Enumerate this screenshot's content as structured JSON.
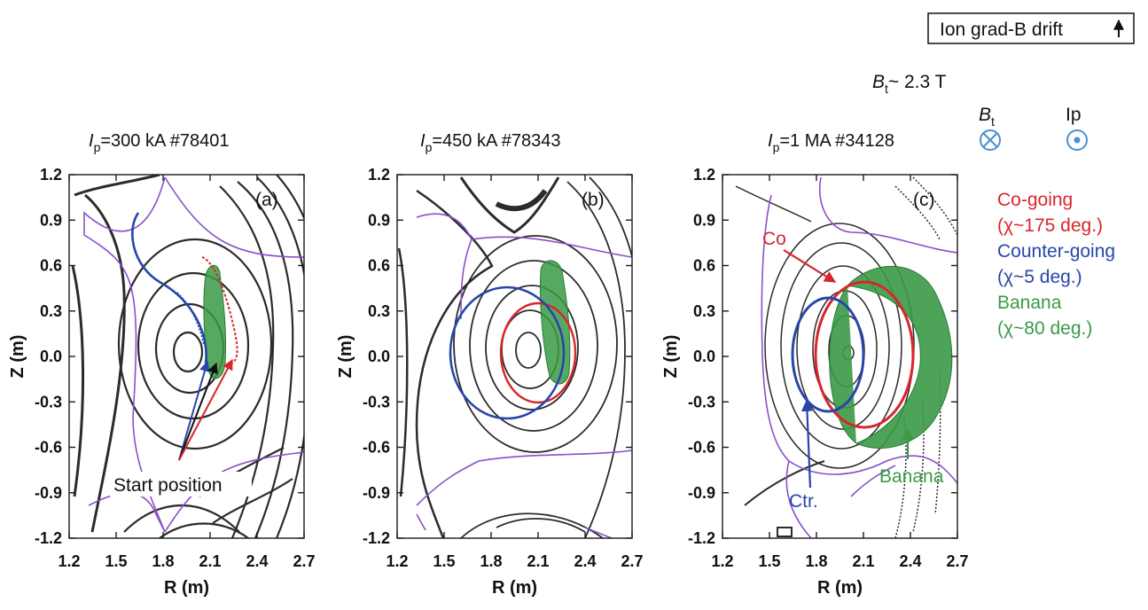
{
  "drift_box_label": "Ion grad-B drift",
  "bt_value": {
    "symbol": "B",
    "sub": "t",
    "value": "~ 2.3 T"
  },
  "field_symbols": {
    "bt": {
      "symbol": "B",
      "sub": "t",
      "glyph": "circle-cross-icon"
    },
    "ip": {
      "label": "Ip",
      "glyph": "circle-dot-icon"
    }
  },
  "legend": [
    {
      "line1": "Co-going",
      "line2": "(χ~175 deg.)",
      "color": "#d8262b"
    },
    {
      "line1": "Counter-going",
      "line2": "(χ~5 deg.)",
      "color": "#2746a8"
    },
    {
      "line1": "Banana",
      "line2": "(χ~80 deg.)",
      "color": "#3a9a46"
    }
  ],
  "axes": {
    "xlabel": "R (m)",
    "ylabel": "Z (m)",
    "xticks": [
      "1.2",
      "1.5",
      "1.8",
      "2.1",
      "2.4",
      "2.7"
    ],
    "yticks": [
      "1.2",
      "0.9",
      "0.6",
      "0.3",
      "0.0",
      "-0.3",
      "-0.6",
      "-0.9",
      "-1.2"
    ],
    "xlim": [
      1.2,
      2.7
    ],
    "ylim": [
      -1.2,
      1.2
    ]
  },
  "panels": [
    {
      "id": "a",
      "title_sym": "I",
      "title_sub": "p",
      "title_rest": "=300 kA #78401",
      "label": "(a)"
    },
    {
      "id": "b",
      "title_sym": "I",
      "title_sub": "p",
      "title_rest": "=450 kA #78343",
      "label": "(b)"
    },
    {
      "id": "c",
      "title_sym": "I",
      "title_sub": "p",
      "title_rest": "=1 MA #34128",
      "label": "(c)"
    }
  ],
  "annotations": {
    "start_position": "Start position",
    "co": "Co",
    "ctr": "Ctr.",
    "banana": "Banana"
  },
  "colors": {
    "co": "#d8262b",
    "counter": "#2746a8",
    "banana": "#3a9a46",
    "separatrix": "#8a4fc8",
    "contour": "#2b2b2b",
    "launch": "#111111"
  }
}
